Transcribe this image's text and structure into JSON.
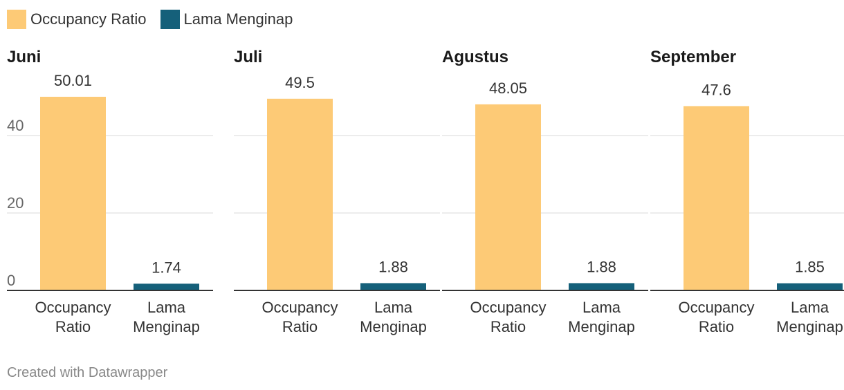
{
  "legend": [
    {
      "label": "Occupancy Ratio",
      "color": "#fdca76"
    },
    {
      "label": "Lama Menginap",
      "color": "#15607a"
    }
  ],
  "chart_data": {
    "type": "bar",
    "layout": "small-multiples",
    "series_names": [
      "Occupancy Ratio",
      "Lama Menginap"
    ],
    "colors": [
      "#fdca76",
      "#15607a"
    ],
    "categories": [
      [
        "Occupancy",
        "Ratio"
      ],
      [
        "Lama",
        "Menginap"
      ]
    ],
    "y_ticks": [
      0,
      20,
      40
    ],
    "ylim": [
      0,
      50
    ],
    "panels": [
      {
        "title": "Juni",
        "values": [
          50.01,
          1.74
        ],
        "value_labels": [
          "50.01",
          "1.74"
        ]
      },
      {
        "title": "Juli",
        "values": [
          49.5,
          1.88
        ],
        "value_labels": [
          "49.5",
          "1.88"
        ]
      },
      {
        "title": "Agustus",
        "values": [
          48.05,
          1.88
        ],
        "value_labels": [
          "48.05",
          "1.88"
        ]
      },
      {
        "title": "September",
        "values": [
          47.6,
          1.85
        ],
        "value_labels": [
          "47.6",
          "1.85"
        ]
      }
    ]
  },
  "footer": "Created with Datawrapper"
}
